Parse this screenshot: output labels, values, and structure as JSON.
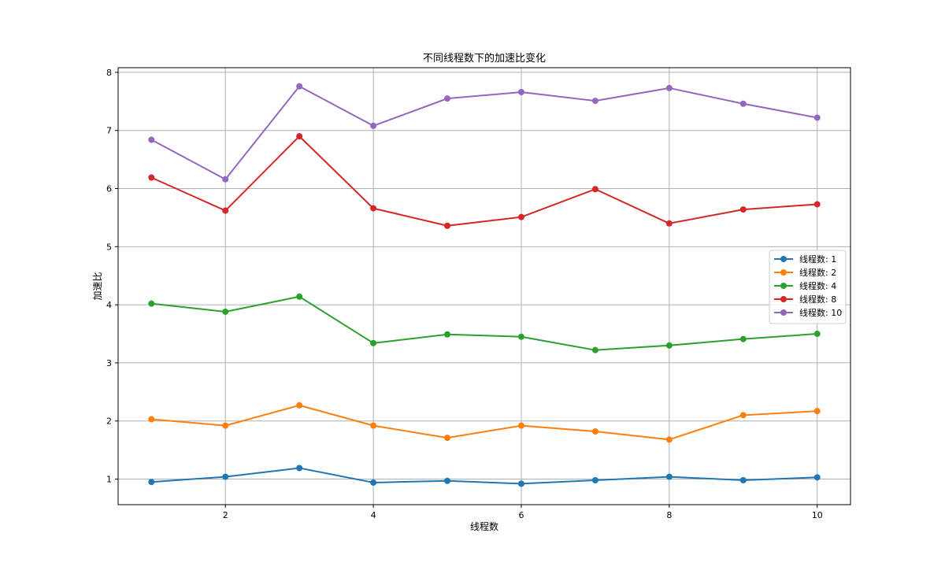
{
  "chart_data": {
    "type": "line",
    "title": "不同线程数下的加速比变化",
    "xlabel": "线程数",
    "ylabel": "加速比",
    "x": [
      1,
      2,
      3,
      4,
      5,
      6,
      7,
      8,
      9,
      10
    ],
    "xlim": [
      0.55,
      10.45
    ],
    "ylim": [
      0.56,
      8.08
    ],
    "xticks": [
      2,
      4,
      6,
      8,
      10
    ],
    "yticks": [
      1,
      2,
      3,
      4,
      5,
      6,
      7,
      8
    ],
    "grid": true,
    "legend_position": "center-right",
    "series": [
      {
        "name": "线程数: 1",
        "color": "#1f77b4",
        "values": [
          0.95,
          1.04,
          1.19,
          0.94,
          0.97,
          0.92,
          0.98,
          1.04,
          0.98,
          1.03
        ]
      },
      {
        "name": "线程数: 2",
        "color": "#ff7f0e",
        "values": [
          2.03,
          1.92,
          2.27,
          1.92,
          1.71,
          1.92,
          1.82,
          1.68,
          2.1,
          2.17
        ]
      },
      {
        "name": "线程数: 4",
        "color": "#2ca02c",
        "values": [
          4.02,
          3.88,
          4.14,
          3.34,
          3.49,
          3.45,
          3.22,
          3.3,
          3.41,
          3.5
        ]
      },
      {
        "name": "线程数: 8",
        "color": "#d62728",
        "values": [
          6.19,
          5.62,
          6.9,
          5.66,
          5.36,
          5.51,
          5.99,
          5.4,
          5.64,
          5.73
        ]
      },
      {
        "name": "线程数: 10",
        "color": "#9467bd",
        "values": [
          6.84,
          6.16,
          7.76,
          7.08,
          7.55,
          7.66,
          7.51,
          7.73,
          7.46,
          7.22
        ]
      }
    ]
  }
}
